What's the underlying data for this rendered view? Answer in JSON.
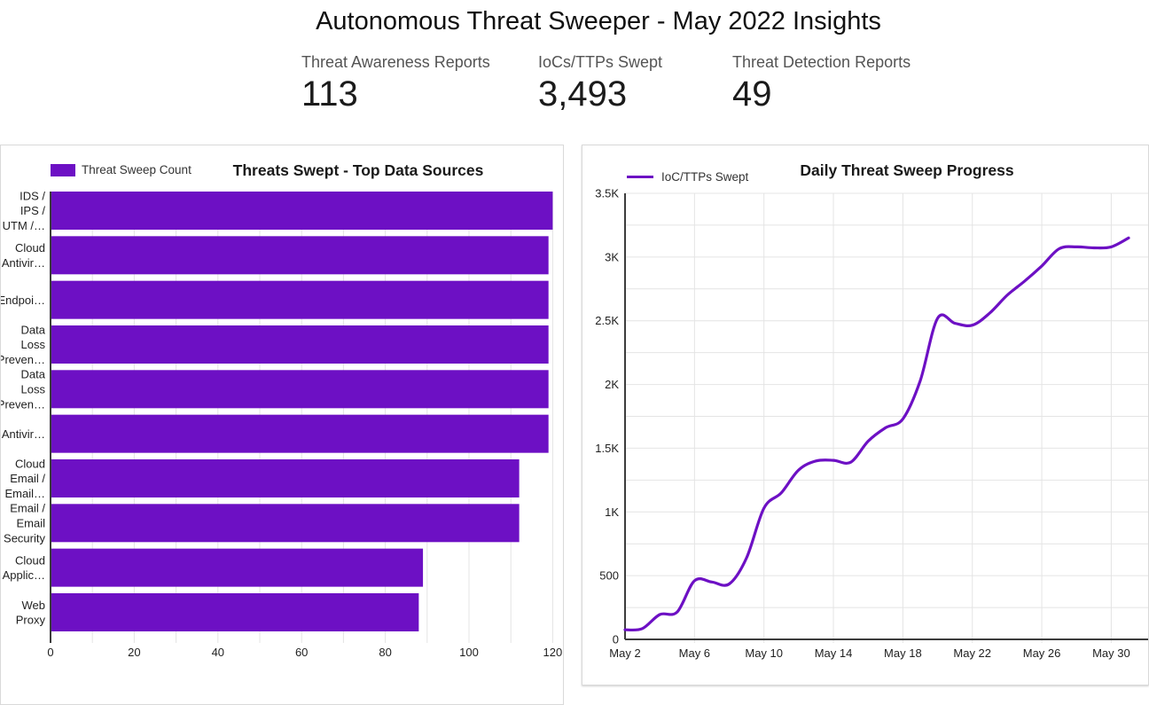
{
  "page": {
    "title": "Autonomous Threat Sweeper - May 2022 Insights"
  },
  "kpis": [
    {
      "label": "Threat Awareness Reports",
      "value": "113"
    },
    {
      "label": "IoCs/TTPs Swept",
      "value": "3,493"
    },
    {
      "label": "Threat Detection Reports",
      "value": "49"
    }
  ],
  "colors": {
    "accent_purple": "#6d10c4",
    "gridline": "#e4e4e4",
    "axis": "#3c3c3c",
    "tick_text": "#1f1f1f",
    "card_border": "#d9d9d9"
  },
  "chart_data": [
    {
      "type": "bar",
      "orientation": "horizontal",
      "title": "Threats Swept - Top Data Sources",
      "legend": "Threat Sweep Count",
      "categories": [
        "IDS / IPS / UTM /…",
        "Cloud Antivir…",
        "Endpoi…",
        "Data Loss Preven…",
        "Data Loss Preven…",
        "Antivir…",
        "Cloud Email / Email…",
        "Email / Email Security",
        "Cloud Applic…",
        "Web Proxy"
      ],
      "categories_lines": [
        [
          "IDS /",
          "IPS /",
          "UTM /…"
        ],
        [
          "Cloud",
          "Antivir…"
        ],
        [
          "Endpoi…"
        ],
        [
          "Data",
          "Loss",
          "Preven…"
        ],
        [
          "Data",
          "Loss",
          "Preven…"
        ],
        [
          "Antivir…"
        ],
        [
          "Cloud",
          "Email /",
          "Email…"
        ],
        [
          "Email /",
          "Email",
          "Security"
        ],
        [
          "Cloud",
          "Applic…"
        ],
        [
          "Web",
          "Proxy"
        ]
      ],
      "values": [
        120,
        119,
        119,
        119,
        119,
        119,
        112,
        112,
        89,
        88
      ],
      "xlabel": "",
      "ylabel": "",
      "xlim": [
        0,
        120
      ],
      "xticks": [
        0,
        20,
        40,
        60,
        80,
        100,
        120
      ],
      "x_grid_step": 10,
      "grid": true,
      "legend_position": "top-left"
    },
    {
      "type": "line",
      "title": "Daily Threat Sweep Progress",
      "legend": "IoC/TTPs Swept",
      "x": [
        "May 2",
        "May 3",
        "May 4",
        "May 5",
        "May 6",
        "May 7",
        "May 8",
        "May 9",
        "May 10",
        "May 11",
        "May 12",
        "May 13",
        "May 14",
        "May 15",
        "May 16",
        "May 17",
        "May 18",
        "May 19",
        "May 20",
        "May 21",
        "May 22",
        "May 23",
        "May 24",
        "May 25",
        "May 26",
        "May 27",
        "May 28",
        "May 29",
        "May 30",
        "May 31"
      ],
      "values": [
        75,
        85,
        195,
        215,
        460,
        450,
        435,
        640,
        1030,
        1150,
        1330,
        1400,
        1405,
        1390,
        1555,
        1660,
        1730,
        2030,
        2520,
        2480,
        2465,
        2560,
        2700,
        2810,
        2930,
        3065,
        3080,
        3072,
        3080,
        3150
      ],
      "xlabel": "",
      "ylabel": "",
      "ylim": [
        0,
        3500
      ],
      "y_grid_step": 250,
      "yticks": [
        "0",
        "500",
        "1K",
        "1.5K",
        "2K",
        "2.5K",
        "3K",
        "3.5K"
      ],
      "ytick_values": [
        0,
        500,
        1000,
        1500,
        2000,
        2500,
        3000,
        3500
      ],
      "xticks": [
        "May 2",
        "May 6",
        "May 10",
        "May 14",
        "May 18",
        "May 22",
        "May 26",
        "May 30"
      ],
      "xtick_days": [
        2,
        6,
        10,
        14,
        18,
        22,
        26,
        30
      ],
      "grid": true,
      "smooth": true,
      "legend_position": "top-left"
    }
  ]
}
